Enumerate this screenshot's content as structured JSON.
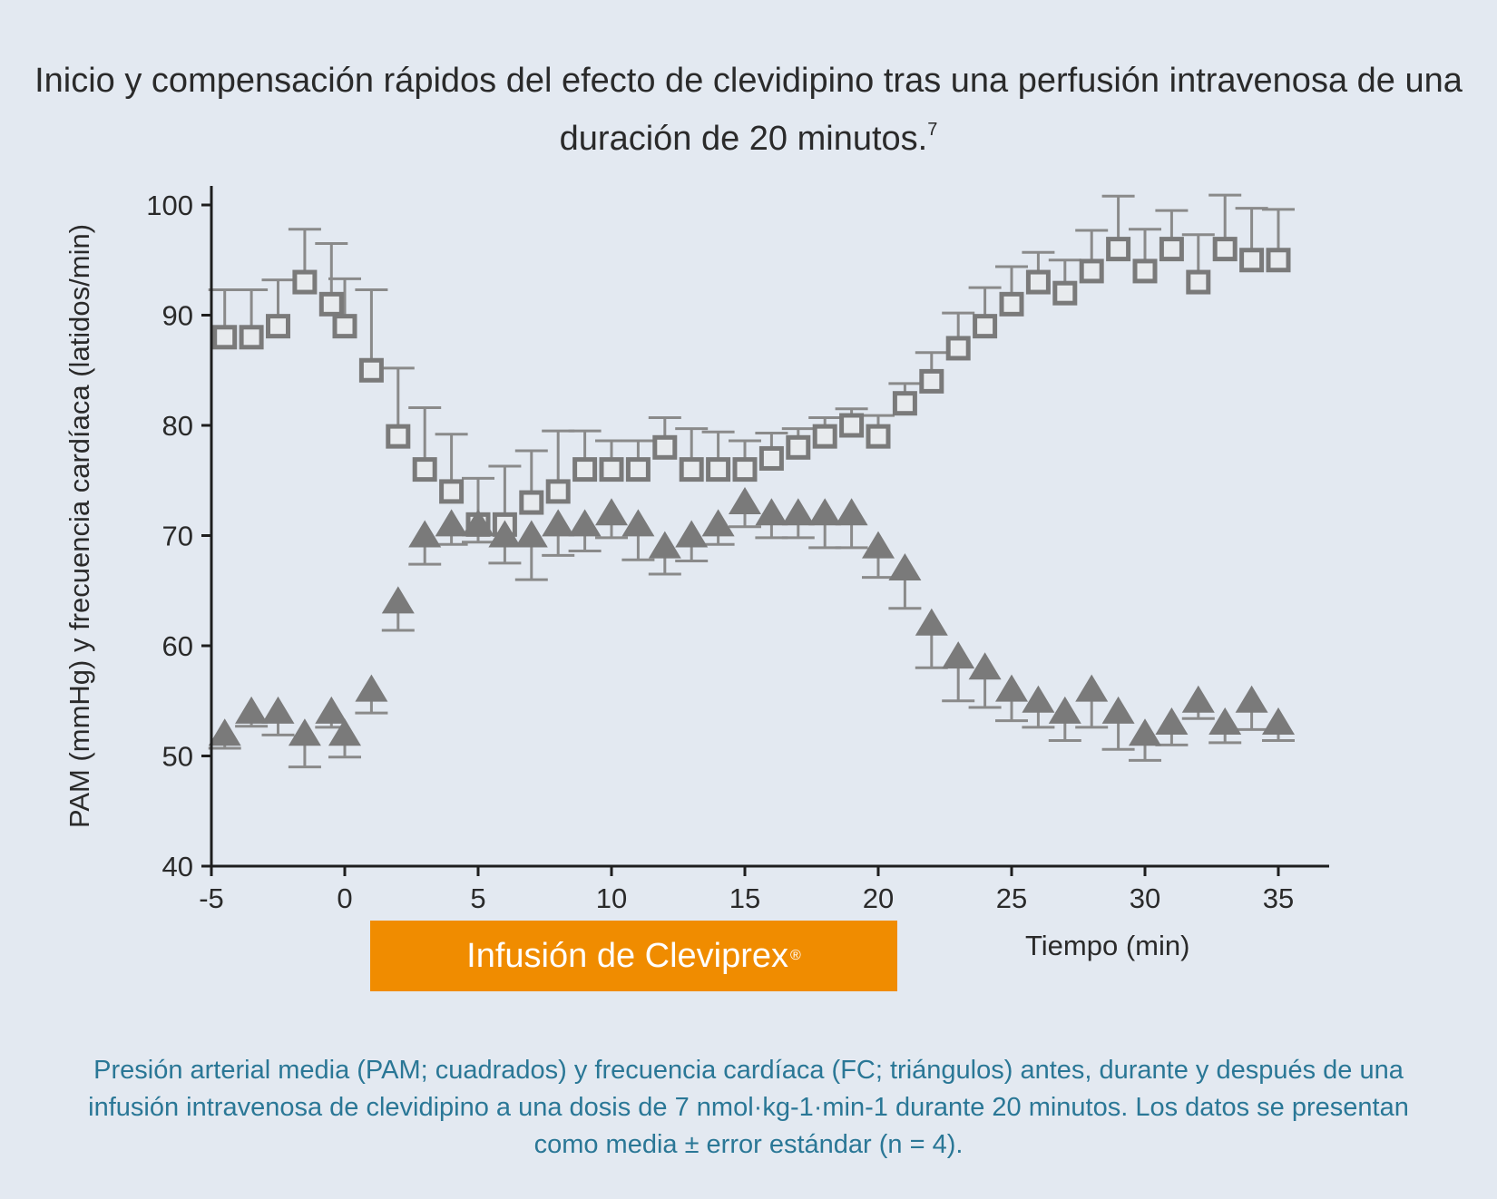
{
  "title": {
    "text": "Inicio y compensación rápidos del efecto de clevidipino tras una perfusión intravenosa de una duración de 20 minutos.",
    "superscript": "7"
  },
  "infusion_bar": {
    "label": "Infusión de Cleviprex",
    "registered_mark": "®",
    "color": "#f08c00"
  },
  "caption": "Presión arterial media (PAM; cuadrados) y frecuencia cardíaca (FC; triángulos) antes, durante y después de una infusión intravenosa de clevidipino a una dosis de 7 nmol·kg-1·min-1 durante 20 minutos. Los datos se presentan como media ± error estándar (n = 4).",
  "colors": {
    "background": "#e3e9f1",
    "marker": "#7a7a7a",
    "errorbar": "#8a8a8a",
    "axis": "#1e1e1e",
    "caption": "#2a7796"
  },
  "chart_data": {
    "type": "scatter",
    "xlabel": "Tiempo (min)",
    "ylabel": "PAM (mmHg) y frecuencia cardíaca (latidos/min)",
    "xlim": [
      -5,
      36
    ],
    "ylim": [
      40,
      100
    ],
    "xticks": [
      -5,
      0,
      5,
      10,
      15,
      20,
      25,
      30,
      35
    ],
    "yticks": [
      40,
      50,
      60,
      70,
      80,
      90,
      100
    ],
    "grid": false,
    "series": [
      {
        "marker": "square",
        "errorbar_direction": "up",
        "x": [
          -4.5,
          -3.5,
          -2.5,
          -1.5,
          -0.5,
          0,
          1,
          2,
          3,
          4,
          5,
          6,
          7,
          8,
          9,
          10,
          11,
          12,
          13,
          14,
          15,
          16,
          17,
          18,
          19,
          20,
          21,
          22,
          23,
          24,
          25,
          26,
          27,
          28,
          29,
          30,
          31,
          32,
          33,
          34,
          35
        ],
        "y": [
          88,
          88,
          89,
          93,
          91,
          89,
          85,
          79,
          76,
          74,
          71,
          71,
          73,
          74,
          76,
          76,
          76,
          78,
          76,
          76,
          76,
          77,
          78,
          79,
          80,
          79,
          82,
          84,
          87,
          89,
          91,
          93,
          92,
          94,
          96,
          94,
          96,
          93,
          96,
          95,
          95
        ],
        "error": [
          4.3,
          4.3,
          4.2,
          4.8,
          5.5,
          4.3,
          7.3,
          6.2,
          5.6,
          5.2,
          4.2,
          5.3,
          4.7,
          5.5,
          3.5,
          2.6,
          2.6,
          2.7,
          3.7,
          3.4,
          2.6,
          2.3,
          1.7,
          1.7,
          1.5,
          1.9,
          1.8,
          2.6,
          3.2,
          3.5,
          3.4,
          2.7,
          3.0,
          3.7,
          4.8,
          3.8,
          3.5,
          4.3,
          4.9,
          4.7,
          4.6
        ]
      },
      {
        "marker": "triangle",
        "errorbar_direction": "down",
        "x": [
          -4.5,
          -3.5,
          -2.5,
          -1.5,
          -0.5,
          0,
          1,
          2,
          3,
          4,
          5,
          6,
          7,
          8,
          9,
          10,
          11,
          12,
          13,
          14,
          15,
          16,
          17,
          18,
          19,
          20,
          21,
          22,
          23,
          24,
          25,
          26,
          27,
          28,
          29,
          30,
          31,
          32,
          33,
          34,
          35
        ],
        "y": [
          52,
          54,
          54,
          52,
          54,
          52,
          56,
          64,
          70,
          71,
          71,
          70,
          70,
          71,
          71,
          72,
          71,
          69,
          70,
          71,
          73,
          72,
          72,
          72,
          72,
          69,
          67,
          62,
          59,
          58,
          56,
          55,
          54,
          56,
          54,
          52,
          53,
          55,
          53,
          55,
          53
        ],
        "error": [
          1.3,
          1.3,
          2.1,
          3.0,
          1.4,
          2.1,
          2.1,
          2.6,
          2.6,
          1.8,
          1.6,
          2.5,
          4.0,
          2.8,
          2.4,
          2.2,
          3.2,
          2.5,
          2.3,
          1.8,
          2.2,
          2.2,
          2.2,
          3.1,
          3.1,
          2.8,
          3.6,
          4.0,
          4.0,
          3.6,
          2.8,
          2.4,
          2.6,
          3.4,
          3.4,
          2.4,
          2.0,
          1.6,
          1.8,
          2.6,
          1.6
        ]
      }
    ],
    "annotations": [
      {
        "text": "Infusión de Cleviprex®",
        "x_from": 0,
        "x_to": 20
      }
    ]
  }
}
